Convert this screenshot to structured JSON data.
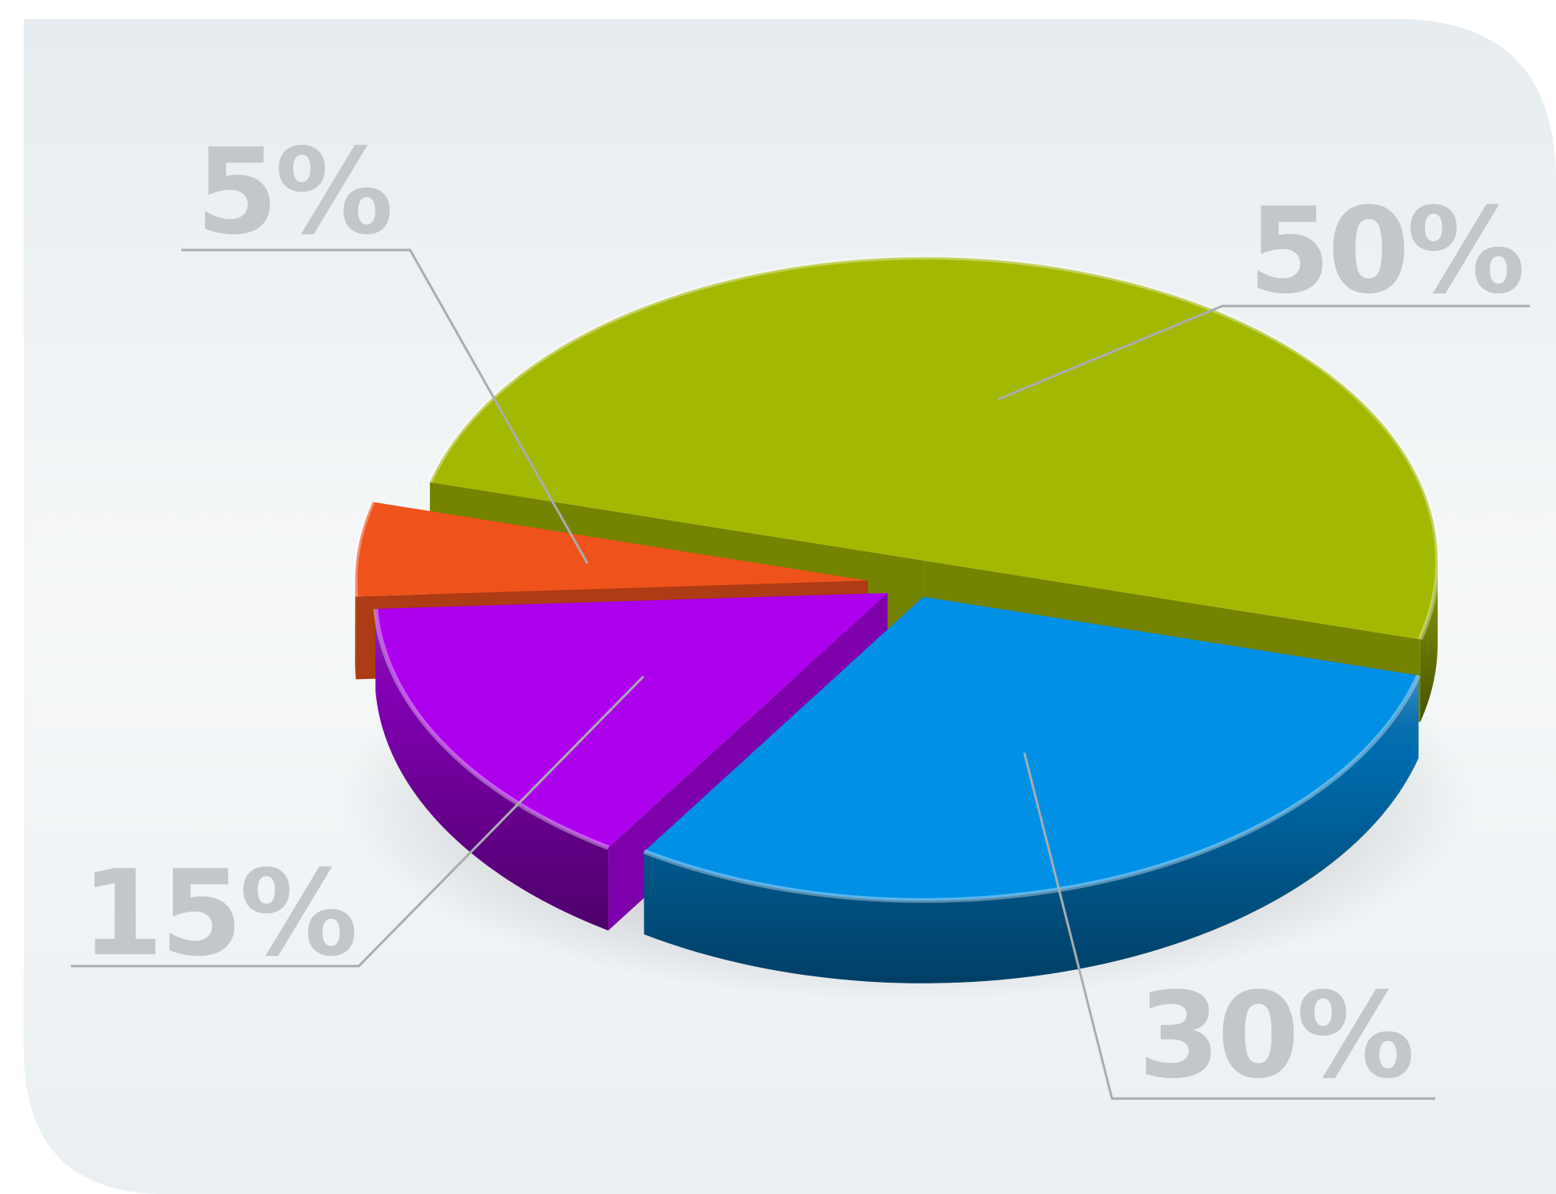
{
  "chart_data": {
    "type": "pie",
    "style": "3d-exploded",
    "categories": [
      "",
      "",
      "",
      ""
    ],
    "values": [
      50,
      30,
      15,
      5
    ],
    "labels": [
      "50%",
      "30%",
      "15%",
      "5%"
    ],
    "colors": [
      "#a3b800",
      "#0090e6",
      "#ad00ed",
      "#f0521b"
    ],
    "title": "",
    "legend": "none"
  }
}
